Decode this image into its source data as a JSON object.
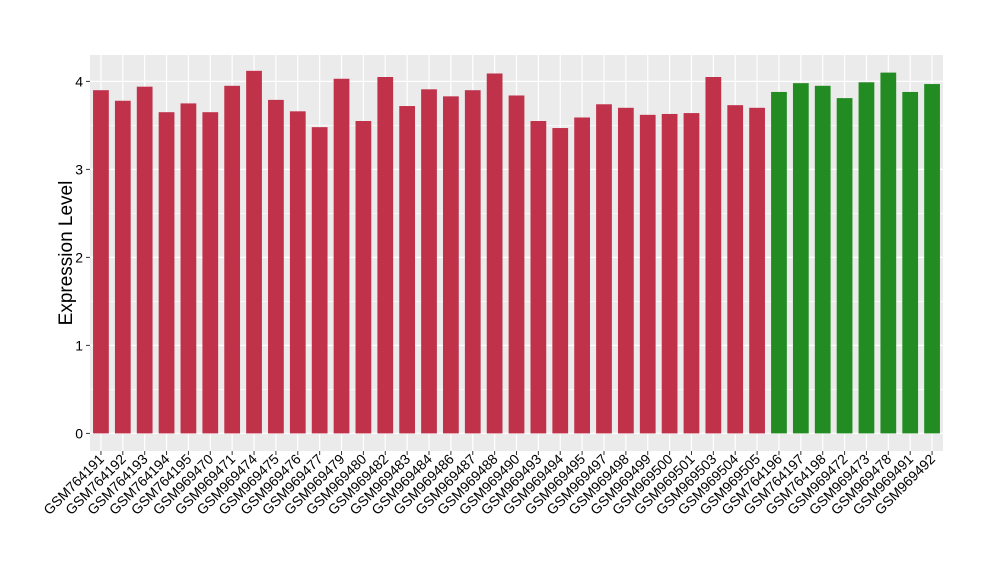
{
  "chart_data": {
    "type": "bar",
    "title": "",
    "xlabel": "",
    "ylabel": "Expression Level",
    "ylim": [
      -0.2,
      4.3
    ],
    "yticks": [
      0,
      1,
      2,
      3,
      4
    ],
    "grid": true,
    "legend": "none",
    "colors": {
      "group_a": "#C0314A",
      "group_b": "#228B22",
      "panel_bg": "#EBEBEB",
      "grid": "#FFFFFF"
    },
    "categories": [
      "GSM764191",
      "GSM764192",
      "GSM764193",
      "GSM764194",
      "GSM764195",
      "GSM969470",
      "GSM969471",
      "GSM969474",
      "GSM969475",
      "GSM969476",
      "GSM969477",
      "GSM969479",
      "GSM969480",
      "GSM969482",
      "GSM969483",
      "GSM969484",
      "GSM969486",
      "GSM969487",
      "GSM969488",
      "GSM969490",
      "GSM969493",
      "GSM969494",
      "GSM969495",
      "GSM969497",
      "GSM969498",
      "GSM969499",
      "GSM969500",
      "GSM969501",
      "GSM969503",
      "GSM969504",
      "GSM969505",
      "GSM764196",
      "GSM764197",
      "GSM764198",
      "GSM969472",
      "GSM969473",
      "GSM969478",
      "GSM969491",
      "GSM969492"
    ],
    "values": [
      3.9,
      3.78,
      3.94,
      3.65,
      3.75,
      3.65,
      3.95,
      4.12,
      3.79,
      3.66,
      3.48,
      4.03,
      3.55,
      4.05,
      3.72,
      3.91,
      3.83,
      3.9,
      4.09,
      3.84,
      3.55,
      3.47,
      3.59,
      3.74,
      3.7,
      3.62,
      3.63,
      3.64,
      4.05,
      3.73,
      3.7,
      3.88,
      3.98,
      3.95,
      3.81,
      3.99,
      4.1,
      3.88,
      3.97
    ],
    "groups": [
      "a",
      "a",
      "a",
      "a",
      "a",
      "a",
      "a",
      "a",
      "a",
      "a",
      "a",
      "a",
      "a",
      "a",
      "a",
      "a",
      "a",
      "a",
      "a",
      "a",
      "a",
      "a",
      "a",
      "a",
      "a",
      "a",
      "a",
      "a",
      "a",
      "a",
      "a",
      "b",
      "b",
      "b",
      "b",
      "b",
      "b",
      "b",
      "b"
    ]
  }
}
